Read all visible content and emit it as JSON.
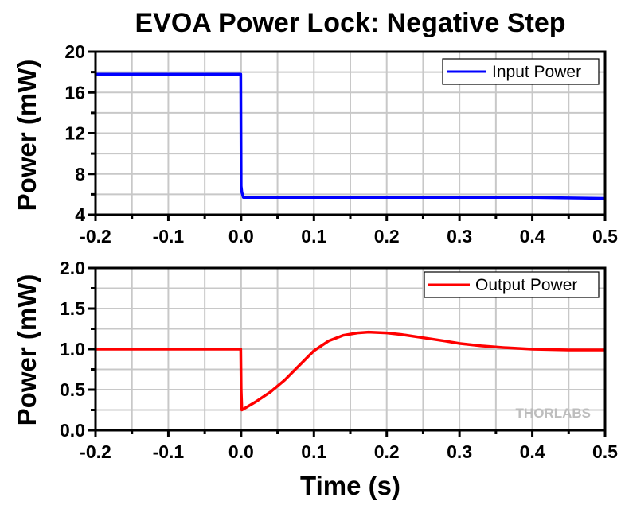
{
  "chart_data": [
    {
      "type": "line",
      "title": "EVOA Power Lock: Negative Step",
      "xlabel": "",
      "ylabel": "Power (mW)",
      "xlim": [
        -0.2,
        0.5
      ],
      "ylim": [
        4,
        20
      ],
      "xticks": [
        "-0.2",
        "-0.1",
        "0.0",
        "0.1",
        "0.2",
        "0.3",
        "0.4",
        "0.5"
      ],
      "xtick_values": [
        -0.2,
        -0.1,
        0.0,
        0.1,
        0.2,
        0.3,
        0.4,
        0.5
      ],
      "yticks": [
        "4",
        "8",
        "12",
        "16",
        "20"
      ],
      "ytick_values": [
        4,
        8,
        12,
        16,
        20
      ],
      "grid": true,
      "legend_position": "top-right",
      "series": [
        {
          "name": "Input Power",
          "color": "#0000ff",
          "x": [
            -0.2,
            -0.1,
            -0.0005,
            0.0,
            0.001,
            0.003,
            0.1,
            0.2,
            0.3,
            0.4,
            0.5
          ],
          "y": [
            17.8,
            17.8,
            17.8,
            6.8,
            6.2,
            5.7,
            5.7,
            5.7,
            5.7,
            5.7,
            5.6
          ]
        }
      ]
    },
    {
      "type": "line",
      "title": "",
      "xlabel": "Time (s)",
      "ylabel": "Power (mW)",
      "xlim": [
        -0.2,
        0.5
      ],
      "ylim": [
        0.0,
        2.0
      ],
      "xticks": [
        "-0.2",
        "-0.1",
        "0.0",
        "0.1",
        "0.2",
        "0.3",
        "0.4",
        "0.5"
      ],
      "xtick_values": [
        -0.2,
        -0.1,
        0.0,
        0.1,
        0.2,
        0.3,
        0.4,
        0.5
      ],
      "yticks": [
        "0.0",
        "0.5",
        "1.0",
        "1.5",
        "2.0"
      ],
      "ytick_values": [
        0.0,
        0.5,
        1.0,
        1.5,
        2.0
      ],
      "grid": true,
      "legend_position": "top-right",
      "watermark": "THORLABS",
      "series": [
        {
          "name": "Output Power",
          "color": "#ff0000",
          "x": [
            -0.2,
            -0.1,
            -0.0005,
            0.0,
            0.001,
            0.02,
            0.04,
            0.06,
            0.08,
            0.1,
            0.12,
            0.14,
            0.16,
            0.175,
            0.2,
            0.22,
            0.25,
            0.28,
            0.3,
            0.33,
            0.36,
            0.4,
            0.45,
            0.5
          ],
          "y": [
            1.0,
            1.0,
            1.0,
            0.5,
            0.25,
            0.35,
            0.47,
            0.62,
            0.8,
            0.98,
            1.1,
            1.17,
            1.2,
            1.21,
            1.2,
            1.18,
            1.14,
            1.1,
            1.07,
            1.04,
            1.02,
            1.0,
            0.99,
            0.99
          ]
        }
      ]
    }
  ]
}
